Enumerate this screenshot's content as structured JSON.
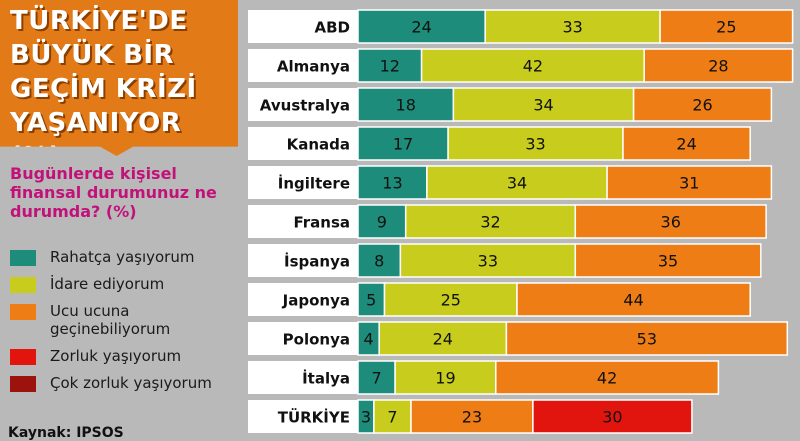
{
  "title_lines": [
    "TÜRKİYE'DE",
    "BÜYÜK BİR",
    "GEÇİM KRİZİ",
    "YAŞANIYOR (%)"
  ],
  "subtitle": "Bugünlerde kişisel finansal durumunuz ne durumda? (%)",
  "source": "Kaynak: IPSOS",
  "legend": [
    {
      "label": "Rahatça yaşıyorum",
      "color": "#1e8c7a"
    },
    {
      "label": "İdare ediyorum",
      "color": "#c8cc1c"
    },
    {
      "label": "Ucu ucuna geçinebiliyorum",
      "color": "#ee7d16"
    },
    {
      "label": "Zorluk yaşıyorum",
      "color": "#e1140e"
    },
    {
      "label": "Çok zorluk yaşıyorum",
      "color": "#9c120c"
    }
  ],
  "chart_data": {
    "type": "bar",
    "orientation": "horizontal-stacked",
    "title": "TÜRKİYE'DE BÜYÜK BİR GEÇİM KRİZİ YAŞANIYOR (%)",
    "subtitle": "Bugünlerde kişisel finansal durumunuz ne durumda? (%)",
    "categories": [
      "ABD",
      "Almanya",
      "Avustralya",
      "Kanada",
      "İngiltere",
      "Fransa",
      "İspanya",
      "Japonya",
      "Polonya",
      "İtalya",
      "TÜRKİYE"
    ],
    "series": [
      {
        "name": "Rahatça yaşıyorum",
        "color": "#1e8c7a",
        "values": [
          24,
          12,
          18,
          17,
          13,
          9,
          8,
          5,
          4,
          7,
          3
        ]
      },
      {
        "name": "İdare ediyorum",
        "color": "#c8cc1c",
        "values": [
          33,
          42,
          34,
          33,
          34,
          32,
          33,
          25,
          24,
          19,
          7
        ]
      },
      {
        "name": "Ucu ucuna geçinebiliyorum",
        "color": "#ee7d16",
        "values": [
          25,
          28,
          26,
          24,
          31,
          36,
          35,
          44,
          53,
          42,
          23
        ]
      },
      {
        "name": "Zorluk yaşıyorum",
        "color": "#e1140e",
        "values": [
          null,
          null,
          null,
          null,
          null,
          null,
          null,
          null,
          null,
          null,
          30
        ]
      },
      {
        "name": "Çok zorluk yaşıyorum",
        "color": "#9c120c",
        "values": [
          null,
          null,
          null,
          null,
          null,
          null,
          null,
          null,
          null,
          null,
          null
        ]
      }
    ],
    "xlim": [
      0,
      100
    ],
    "legend_position": "left"
  }
}
